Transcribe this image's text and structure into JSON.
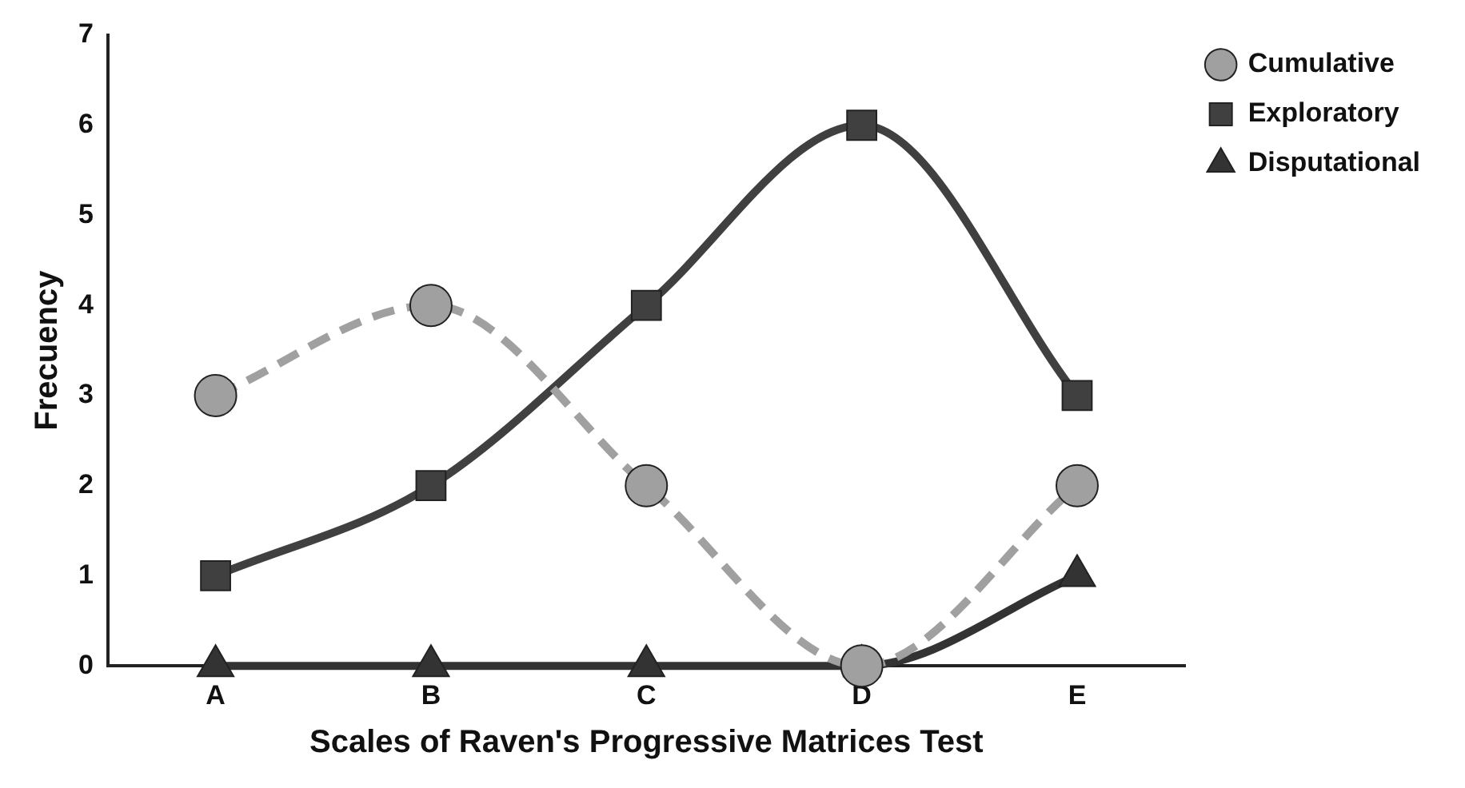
{
  "chart_data": {
    "type": "line",
    "xlabel": "Scales of Raven's Progressive Matrices Test",
    "ylabel": "Frecuency",
    "categories": [
      "A",
      "B",
      "C",
      "D",
      "E"
    ],
    "series": [
      {
        "name": "Cumulative",
        "color": "#a0a0a0",
        "values": [
          3,
          4,
          2,
          0,
          2
        ],
        "marker": "circle",
        "line_style": "dashed"
      },
      {
        "name": "Exploratory",
        "color": "#404040",
        "values": [
          1,
          2,
          4,
          6,
          3
        ],
        "marker": "square",
        "line_style": "solid"
      },
      {
        "name": "Disputational",
        "color": "#333333",
        "values": [
          0,
          0,
          0,
          0,
          1
        ],
        "marker": "triangle",
        "line_style": "solid"
      }
    ],
    "ylim": [
      0,
      7
    ],
    "yticks": [
      0,
      1,
      2,
      3,
      4,
      5,
      6,
      7
    ],
    "grid": false,
    "legend": "top right"
  }
}
